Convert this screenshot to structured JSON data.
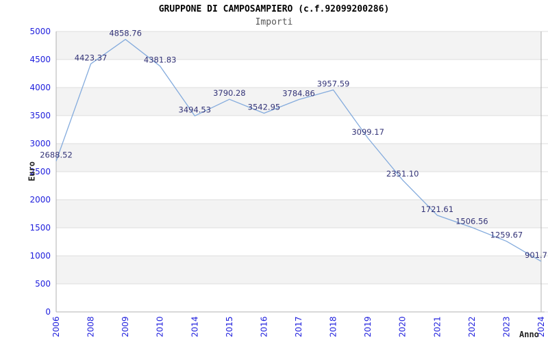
{
  "title": "GRUPPONE DI CAMPOSAMPIERO (c.f.92099200286)",
  "subtitle": "Importi",
  "chart_data": {
    "type": "line",
    "title": "GRUPPONE DI CAMPOSAMPIERO (c.f.92099200286)",
    "subtitle": "Importi",
    "xlabel": "Anno",
    "ylabel": "Euro",
    "categories": [
      "2006",
      "2008",
      "2009",
      "2010",
      "2014",
      "2015",
      "2016",
      "2017",
      "2018",
      "2019",
      "2020",
      "2021",
      "2022",
      "2023",
      "2024"
    ],
    "values": [
      2688.52,
      4423.37,
      4858.76,
      4381.83,
      3494.53,
      3790.28,
      3542.95,
      3784.86,
      3957.59,
      3099.17,
      2351.1,
      1721.61,
      1506.56,
      1259.67,
      901.7
    ],
    "point_labels": [
      "2688.52",
      "4423.37",
      "4858.76",
      "4381.83",
      "3494.53",
      "3790.28",
      "3542.95",
      "3784.86",
      "3957.59",
      "3099.17",
      "2351.10",
      "1721.61",
      "1506.56",
      "1259.67",
      "901.7"
    ],
    "ylim": [
      0,
      5000
    ],
    "ytick_step": 500,
    "yticks": [
      "0",
      "500",
      "1000",
      "1500",
      "2000",
      "2500",
      "3000",
      "3500",
      "4000",
      "4500",
      "5000"
    ],
    "grid": "horizontal-bands-alternating",
    "legend": "none",
    "colors": {
      "line": "#84abdd",
      "tick_label": "#2020dd",
      "point_label": "#333377",
      "band": "#f3f3f3",
      "gridline": "#dddddd",
      "axis": "#b0b0b0",
      "title": "#000000",
      "subtitle": "#555555",
      "axis_title": "#222222"
    }
  }
}
